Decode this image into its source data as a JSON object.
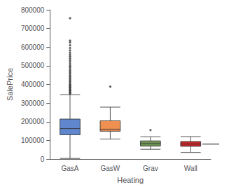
{
  "chart_data": {
    "type": "boxplot",
    "categories": [
      "GasA",
      "GasW",
      "Grav",
      "Wall"
    ],
    "colors": [
      "#4472c4",
      "#ed7d31",
      "#538135",
      "#c00000"
    ],
    "xlabel": "Heating",
    "ylabel": "SalePrice",
    "ylim": [
      0,
      800000
    ],
    "yticks": [
      0,
      100000,
      200000,
      300000,
      400000,
      500000,
      600000,
      700000,
      800000
    ],
    "grid": false,
    "boxes": [
      {
        "whislo": 3000,
        "q1": 130000,
        "med": 163000,
        "q3": 214000,
        "whishi": 345000,
        "fliers": [
          350000,
          355000,
          360000,
          365000,
          370000,
          375000,
          380000,
          385000,
          390000,
          395000,
          400000,
          407000,
          414000,
          421000,
          428000,
          435000,
          442000,
          450000,
          458000,
          466000,
          474000,
          483000,
          492000,
          500000,
          510000,
          520000,
          530000,
          540000,
          550000,
          560000,
          570000,
          582000,
          595000,
          610000,
          625000,
          635000,
          755000
        ]
      },
      {
        "whislo": 107000,
        "q1": 149000,
        "med": 160000,
        "q3": 205000,
        "whishi": 278000,
        "fliers": [
          388000
        ]
      },
      {
        "whislo": 52000,
        "q1": 69000,
        "med": 83000,
        "q3": 97000,
        "whishi": 119000,
        "fliers": [
          155000
        ]
      },
      {
        "whislo": 35000,
        "q1": 68000,
        "med": 80000,
        "q3": 93500,
        "whishi": 120000,
        "fliers": []
      }
    ],
    "extra_line_y": 80000
  }
}
